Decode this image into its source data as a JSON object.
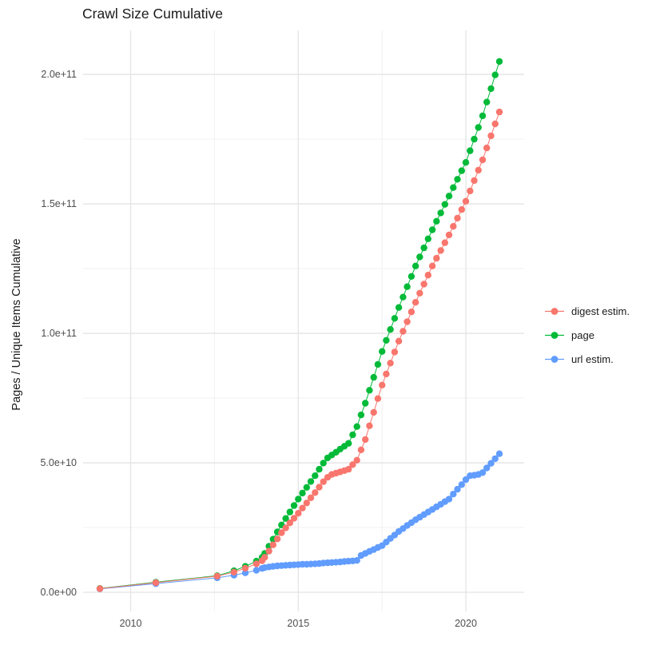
{
  "chart_data": {
    "type": "scatter",
    "title": "Crawl Size Cumulative",
    "xlabel": "",
    "ylabel": "Pages / Unique Items Cumulative",
    "legend_position": "right",
    "grid": "on",
    "colors": {
      "major_grid": "#e4e4e4",
      "minor_grid": "#f2f2f2",
      "title_text": "#1a1a1a",
      "tick_text": "#4d4d4d"
    },
    "xlim": [
      2008.58,
      2021.74
    ],
    "ylim": [
      -7400000000.0,
      217000000000.0
    ],
    "x_axis": {
      "ticks": [
        {
          "value": 2010,
          "label": "2010"
        },
        {
          "value": 2015,
          "label": "2015"
        },
        {
          "value": 2020,
          "label": "2020"
        }
      ],
      "minor": [
        2012.5,
        2017.5
      ]
    },
    "y_axis": {
      "ticks": [
        {
          "value": 0,
          "label": "0.0e+00"
        },
        {
          "value": 50000000000.0,
          "label": "5.0e+10"
        },
        {
          "value": 100000000000.0,
          "label": "1.0e+11"
        },
        {
          "value": 150000000000.0,
          "label": "1.5e+11"
        },
        {
          "value": 200000000000.0,
          "label": "2.0e+11"
        }
      ],
      "minor": [
        25000000000.0,
        75000000000.0,
        125000000000.0,
        175000000000.0
      ]
    },
    "values_unit": 10000000000.0,
    "point_radius": 4.2,
    "draw_order": [
      1,
      2,
      0
    ],
    "series": [
      {
        "name": "digest estim.",
        "color": "#F8766D",
        "points": [
          [
            2009.08,
            0.14
          ],
          [
            2010.75,
            0.37
          ],
          [
            2012.58,
            0.62
          ],
          [
            2013.08,
            0.78
          ],
          [
            2013.42,
            0.93
          ],
          [
            2013.75,
            1.1
          ],
          [
            2013.92,
            1.22
          ],
          [
            2014.0,
            1.35
          ],
          [
            2014.125,
            1.59
          ],
          [
            2014.25,
            1.83
          ],
          [
            2014.375,
            2.06
          ],
          [
            2014.5,
            2.3
          ],
          [
            2014.625,
            2.49
          ],
          [
            2014.75,
            2.68
          ],
          [
            2014.875,
            2.86
          ],
          [
            2015.0,
            3.05
          ],
          [
            2015.125,
            3.25
          ],
          [
            2015.25,
            3.45
          ],
          [
            2015.375,
            3.65
          ],
          [
            2015.5,
            3.85
          ],
          [
            2015.625,
            4.06
          ],
          [
            2015.75,
            4.27
          ],
          [
            2015.875,
            4.44
          ],
          [
            2016.0,
            4.55
          ],
          [
            2016.125,
            4.6
          ],
          [
            2016.25,
            4.65
          ],
          [
            2016.375,
            4.7
          ],
          [
            2016.5,
            4.75
          ],
          [
            2016.625,
            4.93
          ],
          [
            2016.75,
            5.1
          ],
          [
            2016.875,
            5.5
          ],
          [
            2017.0,
            5.9
          ],
          [
            2017.125,
            6.43
          ],
          [
            2017.25,
            6.95
          ],
          [
            2017.375,
            7.48
          ],
          [
            2017.5,
            8.0
          ],
          [
            2017.625,
            8.43
          ],
          [
            2017.75,
            8.85
          ],
          [
            2017.875,
            9.28
          ],
          [
            2018.0,
            9.7
          ],
          [
            2018.125,
            10.08
          ],
          [
            2018.25,
            10.45
          ],
          [
            2018.375,
            10.83
          ],
          [
            2018.5,
            11.2
          ],
          [
            2018.625,
            11.55
          ],
          [
            2018.75,
            11.9
          ],
          [
            2018.875,
            12.25
          ],
          [
            2019.0,
            12.6
          ],
          [
            2019.125,
            12.9
          ],
          [
            2019.25,
            13.2
          ],
          [
            2019.375,
            13.5
          ],
          [
            2019.5,
            13.8
          ],
          [
            2019.625,
            14.13
          ],
          [
            2019.75,
            14.45
          ],
          [
            2019.875,
            14.78
          ],
          [
            2020.0,
            15.1
          ],
          [
            2020.125,
            15.5
          ],
          [
            2020.25,
            15.9
          ],
          [
            2020.375,
            16.3
          ],
          [
            2020.5,
            16.7
          ],
          [
            2020.625,
            17.16
          ],
          [
            2020.75,
            17.63
          ],
          [
            2020.875,
            18.09
          ],
          [
            2021.0,
            18.55
          ]
        ]
      },
      {
        "name": "page",
        "color": "#00BA38",
        "points": [
          [
            2009.08,
            0.15
          ],
          [
            2010.75,
            0.39
          ],
          [
            2012.58,
            0.64
          ],
          [
            2013.08,
            0.83
          ],
          [
            2013.42,
            1.0
          ],
          [
            2013.75,
            1.2
          ],
          [
            2013.92,
            1.35
          ],
          [
            2014.0,
            1.5
          ],
          [
            2014.125,
            1.78
          ],
          [
            2014.25,
            2.05
          ],
          [
            2014.375,
            2.33
          ],
          [
            2014.5,
            2.6
          ],
          [
            2014.625,
            2.85
          ],
          [
            2014.75,
            3.1
          ],
          [
            2014.875,
            3.35
          ],
          [
            2015.0,
            3.6
          ],
          [
            2015.125,
            3.83
          ],
          [
            2015.25,
            4.05
          ],
          [
            2015.375,
            4.28
          ],
          [
            2015.5,
            4.5
          ],
          [
            2015.625,
            4.75
          ],
          [
            2015.75,
            4.99
          ],
          [
            2015.875,
            5.19
          ],
          [
            2016.0,
            5.3
          ],
          [
            2016.125,
            5.41
          ],
          [
            2016.25,
            5.53
          ],
          [
            2016.375,
            5.64
          ],
          [
            2016.5,
            5.75
          ],
          [
            2016.625,
            6.08
          ],
          [
            2016.75,
            6.4
          ],
          [
            2016.875,
            6.85
          ],
          [
            2017.0,
            7.3
          ],
          [
            2017.125,
            7.8
          ],
          [
            2017.25,
            8.3
          ],
          [
            2017.375,
            8.8
          ],
          [
            2017.5,
            9.3
          ],
          [
            2017.625,
            9.73
          ],
          [
            2017.75,
            10.15
          ],
          [
            2017.875,
            10.58
          ],
          [
            2018.0,
            11.0
          ],
          [
            2018.125,
            11.4
          ],
          [
            2018.25,
            11.8
          ],
          [
            2018.375,
            12.2
          ],
          [
            2018.5,
            12.6
          ],
          [
            2018.625,
            12.95
          ],
          [
            2018.75,
            13.3
          ],
          [
            2018.875,
            13.65
          ],
          [
            2019.0,
            14.0
          ],
          [
            2019.125,
            14.33
          ],
          [
            2019.25,
            14.65
          ],
          [
            2019.375,
            14.98
          ],
          [
            2019.5,
            15.3
          ],
          [
            2019.625,
            15.63
          ],
          [
            2019.75,
            15.95
          ],
          [
            2019.875,
            16.28
          ],
          [
            2020.0,
            16.6
          ],
          [
            2020.125,
            17.05
          ],
          [
            2020.25,
            17.5
          ],
          [
            2020.375,
            17.95
          ],
          [
            2020.5,
            18.4
          ],
          [
            2020.625,
            18.93
          ],
          [
            2020.75,
            19.45
          ],
          [
            2020.875,
            19.98
          ],
          [
            2021.0,
            20.5
          ]
        ]
      },
      {
        "name": "url estim.",
        "color": "#619CFF",
        "points": [
          [
            2009.08,
            0.13
          ],
          [
            2010.75,
            0.33
          ],
          [
            2012.58,
            0.56
          ],
          [
            2013.08,
            0.66
          ],
          [
            2013.42,
            0.75
          ],
          [
            2013.75,
            0.85
          ],
          [
            2013.92,
            0.92
          ],
          [
            2014.0,
            0.95
          ],
          [
            2014.125,
            0.98
          ],
          [
            2014.25,
            1.0
          ],
          [
            2014.375,
            1.02
          ],
          [
            2014.5,
            1.03
          ],
          [
            2014.625,
            1.04
          ],
          [
            2014.75,
            1.05
          ],
          [
            2014.875,
            1.06
          ],
          [
            2015.0,
            1.07
          ],
          [
            2015.125,
            1.08
          ],
          [
            2015.25,
            1.08
          ],
          [
            2015.375,
            1.09
          ],
          [
            2015.5,
            1.1
          ],
          [
            2015.625,
            1.11
          ],
          [
            2015.75,
            1.13
          ],
          [
            2015.875,
            1.14
          ],
          [
            2016.0,
            1.15
          ],
          [
            2016.125,
            1.16
          ],
          [
            2016.25,
            1.17
          ],
          [
            2016.375,
            1.19
          ],
          [
            2016.5,
            1.2
          ],
          [
            2016.625,
            1.21
          ],
          [
            2016.75,
            1.23
          ],
          [
            2016.875,
            1.42
          ],
          [
            2017.0,
            1.5
          ],
          [
            2017.125,
            1.58
          ],
          [
            2017.25,
            1.65
          ],
          [
            2017.375,
            1.73
          ],
          [
            2017.5,
            1.8
          ],
          [
            2017.625,
            1.94
          ],
          [
            2017.75,
            2.08
          ],
          [
            2017.875,
            2.21
          ],
          [
            2018.0,
            2.35
          ],
          [
            2018.125,
            2.46
          ],
          [
            2018.25,
            2.58
          ],
          [
            2018.375,
            2.69
          ],
          [
            2018.5,
            2.8
          ],
          [
            2018.625,
            2.9
          ],
          [
            2018.75,
            3.0
          ],
          [
            2018.875,
            3.1
          ],
          [
            2019.0,
            3.2
          ],
          [
            2019.125,
            3.3
          ],
          [
            2019.25,
            3.4
          ],
          [
            2019.375,
            3.5
          ],
          [
            2019.5,
            3.6
          ],
          [
            2019.625,
            3.79
          ],
          [
            2019.75,
            3.98
          ],
          [
            2019.875,
            4.16
          ],
          [
            2020.0,
            4.35
          ],
          [
            2020.125,
            4.5
          ],
          [
            2020.25,
            4.52
          ],
          [
            2020.375,
            4.55
          ],
          [
            2020.5,
            4.62
          ],
          [
            2020.625,
            4.8
          ],
          [
            2020.75,
            4.98
          ],
          [
            2020.875,
            5.16
          ],
          [
            2021.0,
            5.35
          ]
        ]
      }
    ]
  }
}
